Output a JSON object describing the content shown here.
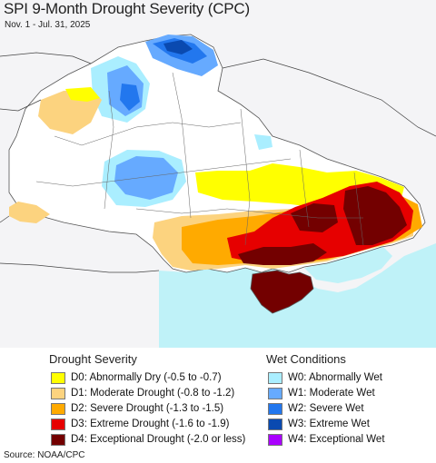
{
  "header": {
    "title": "SPI 9-Month Drought Severity (CPC)",
    "date_range": "Nov. 1 - Jul. 31, 2025"
  },
  "map": {
    "region_shown": "Ukraine and surrounding area",
    "colors": {
      "land": "#ffffff",
      "outside_land": "#f4f4f6",
      "sea": "#bff2f8",
      "borders": "#555555"
    }
  },
  "legend": {
    "drought": {
      "title": "Drought Severity",
      "items": [
        {
          "code": "D0",
          "label": "D0: Abnormally Dry (-0.5 to -0.7)",
          "color": "#ffff00"
        },
        {
          "code": "D1",
          "label": "D1: Moderate Drought (-0.8 to -1.2)",
          "color": "#fcd37f"
        },
        {
          "code": "D2",
          "label": "D2: Severe Drought (-1.3 to -1.5)",
          "color": "#ffaa00"
        },
        {
          "code": "D3",
          "label": "D3: Extreme Drought (-1.6 to -1.9)",
          "color": "#e60000"
        },
        {
          "code": "D4",
          "label": "D4: Exceptional Drought (-2.0 or less)",
          "color": "#730000"
        }
      ]
    },
    "wet": {
      "title": "Wet Conditions",
      "items": [
        {
          "code": "W0",
          "label": "W0: Abnormally Wet",
          "color": "#aaeeff"
        },
        {
          "code": "W1",
          "label": "W1: Moderate Wet",
          "color": "#66aaff"
        },
        {
          "code": "W2",
          "label": "W2: Severe Wet",
          "color": "#2277ee"
        },
        {
          "code": "W3",
          "label": "W3: Extreme Wet",
          "color": "#0a4ab0"
        },
        {
          "code": "W4",
          "label": "W4: Exceptional Wet",
          "color": "#aa00ff"
        }
      ]
    }
  },
  "footer": {
    "source": "Source: NOAA/CPC"
  }
}
